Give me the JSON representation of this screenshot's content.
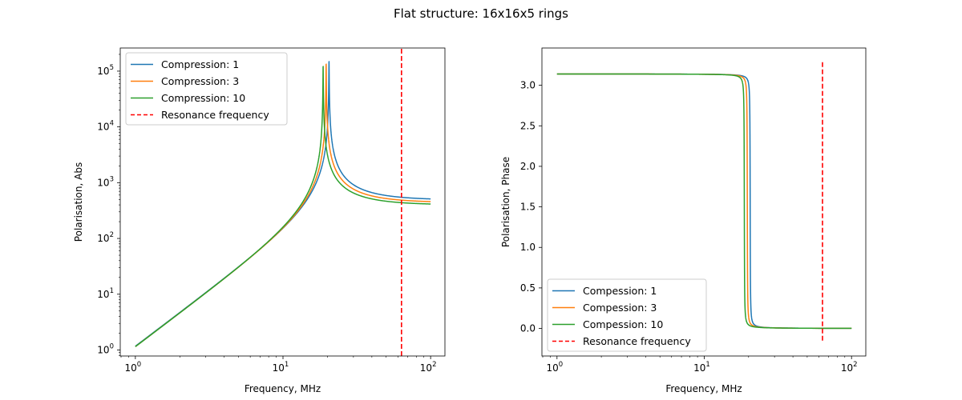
{
  "figure": {
    "title": "Flat structure: 16x16x5 rings"
  },
  "chart_data": [
    {
      "type": "line",
      "xscale": "log",
      "yscale": "log",
      "xlim": [
        0.79,
        125
      ],
      "ylim": [
        0.78,
        260000
      ],
      "xlabel": "Frequency, MHz",
      "ylabel": "Polarisation, Abs",
      "xticks": [
        {
          "value": 1,
          "base": "10",
          "exp": "0"
        },
        {
          "value": 10,
          "base": "10",
          "exp": "1"
        },
        {
          "value": 100,
          "base": "10",
          "exp": "2"
        }
      ],
      "yticks": [
        {
          "value": 1,
          "base": "10",
          "exp": "0"
        },
        {
          "value": 10,
          "base": "10",
          "exp": "1"
        },
        {
          "value": 100,
          "base": "10",
          "exp": "2"
        },
        {
          "value": 1000,
          "base": "10",
          "exp": "3"
        },
        {
          "value": 10000,
          "base": "10",
          "exp": "4"
        },
        {
          "value": 100000,
          "base": "10",
          "exp": "5"
        }
      ],
      "legend_position": "upper-left",
      "series": [
        {
          "name": "Compression: 1",
          "color": "#1f77b4",
          "resonance": 20.5,
          "peak": 150000,
          "high_asymptote": 490
        },
        {
          "name": "Compression: 3",
          "color": "#ff7f0e",
          "resonance": 19.6,
          "peak": 140000,
          "high_asymptote": 440
        },
        {
          "name": "Compression: 10",
          "color": "#2ca02c",
          "resonance": 18.7,
          "peak": 135000,
          "high_asymptote": 400
        }
      ],
      "vline": {
        "name": "Resonance frequency",
        "x": 63.5,
        "color": "#ff0000",
        "style": "dashed"
      }
    },
    {
      "type": "line",
      "xscale": "log",
      "yscale": "linear",
      "xlim": [
        0.79,
        125
      ],
      "ylim": [
        -0.34,
        3.46
      ],
      "xlabel": "Frequency, MHz",
      "ylabel": "Polarisation, Phase",
      "xticks": [
        {
          "value": 1,
          "base": "10",
          "exp": "0"
        },
        {
          "value": 10,
          "base": "10",
          "exp": "1"
        },
        {
          "value": 100,
          "base": "10",
          "exp": "2"
        }
      ],
      "yticks": [
        {
          "value": 0.0,
          "label": "0.0"
        },
        {
          "value": 0.5,
          "label": "0.5"
        },
        {
          "value": 1.0,
          "label": "1.0"
        },
        {
          "value": 1.5,
          "label": "1.5"
        },
        {
          "value": 2.0,
          "label": "2.0"
        },
        {
          "value": 2.5,
          "label": "2.5"
        },
        {
          "value": 3.0,
          "label": "3.0"
        }
      ],
      "legend_position": "lower-left",
      "series": [
        {
          "name": "Compession: 1",
          "color": "#1f77b4",
          "resonance": 20.5,
          "start": 3.14,
          "end": 0.0
        },
        {
          "name": "Compession: 3",
          "color": "#ff7f0e",
          "resonance": 19.6,
          "start": 3.14,
          "end": 0.0
        },
        {
          "name": "Compession: 10",
          "color": "#2ca02c",
          "resonance": 18.7,
          "start": 3.14,
          "end": 0.0
        }
      ],
      "vline": {
        "name": "Resonance frequency",
        "x": 63.5,
        "ymin": -0.15,
        "ymax": 3.3,
        "color": "#ff0000",
        "style": "dashed"
      }
    }
  ]
}
